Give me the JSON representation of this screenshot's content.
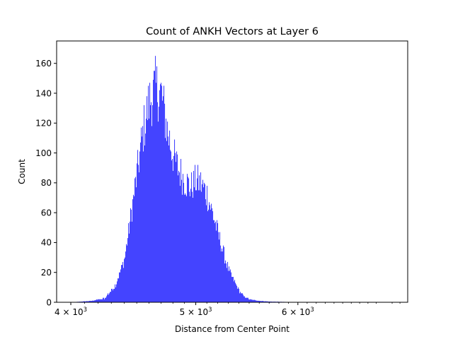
{
  "chart_data": {
    "type": "bar",
    "title": "Count of ANKH Vectors at Layer 6",
    "xlabel": "Distance from Center Point",
    "ylabel": "Count",
    "xscale": "log",
    "xlim": [
      3900,
      7300
    ],
    "ylim": [
      0,
      175
    ],
    "yticks": [
      0,
      20,
      40,
      60,
      80,
      100,
      120,
      140,
      160
    ],
    "xticks": [
      {
        "value": 4000,
        "mantissa": "4",
        "base": "10",
        "exp": "3"
      },
      {
        "value": 5000,
        "mantissa": "5",
        "base": "10",
        "exp": "3"
      },
      {
        "value": 6000,
        "mantissa": "6",
        "base": "10",
        "exp": "3"
      }
    ],
    "grid": false,
    "bar_color": "#4040ff",
    "histogram_profile_x": [
      4000,
      4150,
      4250,
      4330,
      4400,
      4450,
      4500,
      4550,
      4600,
      4650,
      4700,
      4750,
      4800,
      4850,
      4900,
      4950,
      5000,
      5050,
      5100,
      5150,
      5200,
      5250,
      5300,
      5350,
      5400,
      5450,
      5500,
      5600,
      5700,
      5900,
      6200,
      7000
    ],
    "histogram_profile_y": [
      0,
      1,
      3,
      12,
      30,
      60,
      90,
      120,
      140,
      150,
      145,
      120,
      102,
      92,
      85,
      80,
      85,
      82,
      75,
      62,
      48,
      35,
      22,
      15,
      8,
      4,
      2,
      1,
      0.5,
      0.2,
      0.1,
      0
    ]
  }
}
